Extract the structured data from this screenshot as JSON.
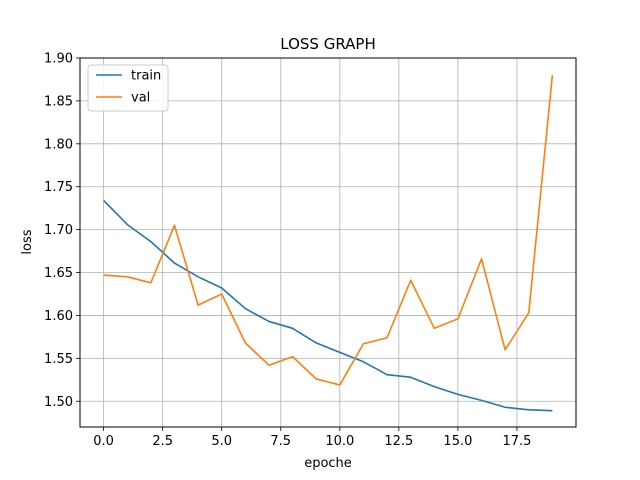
{
  "chart_data": {
    "type": "line",
    "title": "LOSS GRAPH",
    "xlabel": "epoche",
    "ylabel": "loss",
    "xlim": [
      -1,
      20
    ],
    "ylim": [
      1.47,
      1.9
    ],
    "xticks": [
      0,
      2.5,
      5,
      7.5,
      10,
      12.5,
      15,
      17.5
    ],
    "xtick_labels": [
      "0.0",
      "2.5",
      "5.0",
      "7.5",
      "10.0",
      "12.5",
      "15.0",
      "17.5"
    ],
    "yticks": [
      1.5,
      1.55,
      1.6,
      1.65,
      1.7,
      1.75,
      1.8,
      1.85,
      1.9
    ],
    "ytick_labels": [
      "1.50",
      "1.55",
      "1.60",
      "1.65",
      "1.70",
      "1.75",
      "1.80",
      "1.85",
      "1.90"
    ],
    "grid": true,
    "legend_position": "top-left",
    "x": [
      0,
      1,
      2,
      3,
      4,
      5,
      6,
      7,
      8,
      9,
      10,
      11,
      12,
      13,
      14,
      15,
      16,
      17,
      18,
      19
    ],
    "series": [
      {
        "name": "train",
        "color": "#1f77b4",
        "values": [
          1.734,
          1.706,
          1.686,
          1.661,
          1.645,
          1.632,
          1.608,
          1.593,
          1.585,
          1.568,
          1.557,
          1.546,
          1.531,
          1.528,
          1.517,
          1.508,
          1.501,
          1.493,
          1.49,
          1.489
        ]
      },
      {
        "name": "val",
        "color": "#ff7f0e",
        "values": [
          1.647,
          1.645,
          1.638,
          1.705,
          1.612,
          1.625,
          1.568,
          1.542,
          1.552,
          1.526,
          1.519,
          1.567,
          1.574,
          1.641,
          1.585,
          1.596,
          1.666,
          1.56,
          1.603,
          1.88
        ]
      }
    ]
  }
}
